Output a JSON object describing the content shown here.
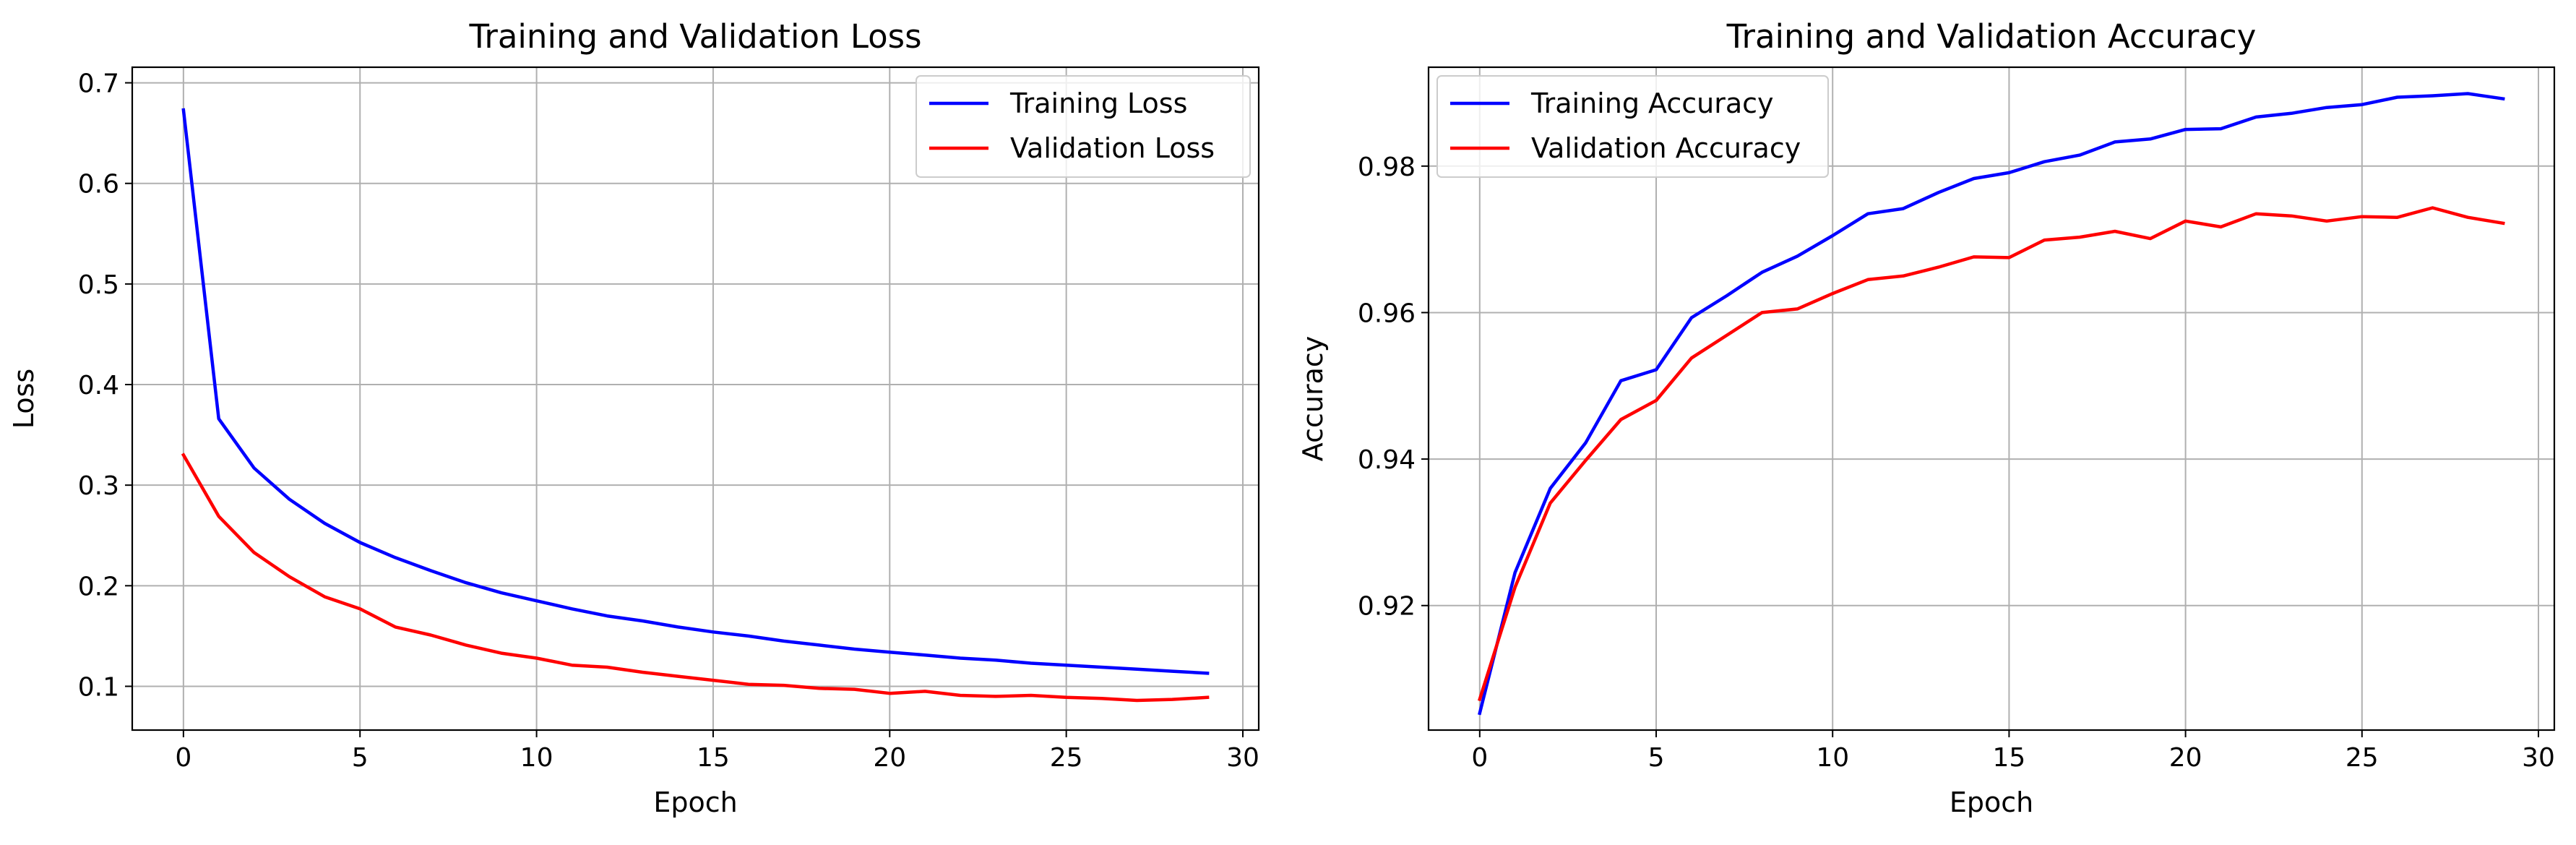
{
  "chart_data": [
    {
      "type": "line",
      "title": "Training and Validation Loss",
      "xlabel": "Epoch",
      "ylabel": "Loss",
      "xlim": [
        -1.45,
        30.45
      ],
      "ylim": [
        0.0565,
        0.7155
      ],
      "xticks": [
        0,
        5,
        10,
        15,
        20,
        25,
        30
      ],
      "yticks": [
        0.1,
        0.2,
        0.3,
        0.4,
        0.5,
        0.6,
        0.7
      ],
      "ytick_labels": [
        "0.1",
        "0.2",
        "0.3",
        "0.4",
        "0.5",
        "0.6",
        "0.7"
      ],
      "grid": true,
      "legend": "upper right",
      "x": [
        0,
        1,
        2,
        3,
        4,
        5,
        6,
        7,
        8,
        9,
        10,
        11,
        12,
        13,
        14,
        15,
        16,
        17,
        18,
        19,
        20,
        21,
        22,
        23,
        24,
        25,
        26,
        27,
        28,
        29
      ],
      "series": [
        {
          "name": "Training Loss",
          "color": "#0000ff",
          "values": [
            0.673,
            0.366,
            0.317,
            0.286,
            0.262,
            0.243,
            0.228,
            0.215,
            0.203,
            0.193,
            0.185,
            0.177,
            0.17,
            0.165,
            0.159,
            0.154,
            0.15,
            0.145,
            0.141,
            0.137,
            0.134,
            0.131,
            0.128,
            0.126,
            0.123,
            0.121,
            0.119,
            0.117,
            0.115,
            0.113
          ]
        },
        {
          "name": "Validation Loss",
          "color": "#ff0000",
          "values": [
            0.33,
            0.269,
            0.233,
            0.209,
            0.189,
            0.177,
            0.159,
            0.151,
            0.141,
            0.133,
            0.128,
            0.121,
            0.119,
            0.114,
            0.11,
            0.106,
            0.102,
            0.101,
            0.098,
            0.097,
            0.093,
            0.095,
            0.091,
            0.09,
            0.091,
            0.089,
            0.088,
            0.086,
            0.087,
            0.089
          ]
        }
      ]
    },
    {
      "type": "line",
      "title": "Training and Validation Accuracy",
      "xlabel": "Epoch",
      "ylabel": "Accuracy",
      "xlim": [
        -1.45,
        30.45
      ],
      "ylim": [
        0.903,
        0.9935
      ],
      "xticks": [
        0,
        5,
        10,
        15,
        20,
        25,
        30
      ],
      "yticks": [
        0.92,
        0.94,
        0.96,
        0.98
      ],
      "ytick_labels": [
        "0.92",
        "0.94",
        "0.96",
        "0.98"
      ],
      "grid": true,
      "legend": "upper left",
      "x": [
        0,
        1,
        2,
        3,
        4,
        5,
        6,
        7,
        8,
        9,
        10,
        11,
        12,
        13,
        14,
        15,
        16,
        17,
        18,
        19,
        20,
        21,
        22,
        23,
        24,
        25,
        26,
        27,
        28,
        29
      ],
      "series": [
        {
          "name": "Training Accuracy",
          "color": "#0000ff",
          "values": [
            0.9053,
            0.9245,
            0.936,
            0.9422,
            0.9507,
            0.9522,
            0.9593,
            0.9623,
            0.9655,
            0.9677,
            0.9705,
            0.9735,
            0.9742,
            0.9764,
            0.9783,
            0.9791,
            0.9806,
            0.9815,
            0.9833,
            0.9837,
            0.985,
            0.9851,
            0.9867,
            0.9872,
            0.988,
            0.9884,
            0.9894,
            0.9896,
            0.9899,
            0.9892
          ]
        },
        {
          "name": "Validation Accuracy",
          "color": "#ff0000",
          "values": [
            0.9072,
            0.9225,
            0.934,
            0.9398,
            0.9454,
            0.948,
            0.9538,
            0.9569,
            0.96,
            0.9605,
            0.9626,
            0.9645,
            0.965,
            0.9662,
            0.9676,
            0.9675,
            0.9699,
            0.9703,
            0.9711,
            0.9701,
            0.9725,
            0.9717,
            0.9735,
            0.9732,
            0.9725,
            0.9731,
            0.973,
            0.9743,
            0.973,
            0.9722
          ]
        }
      ]
    }
  ]
}
